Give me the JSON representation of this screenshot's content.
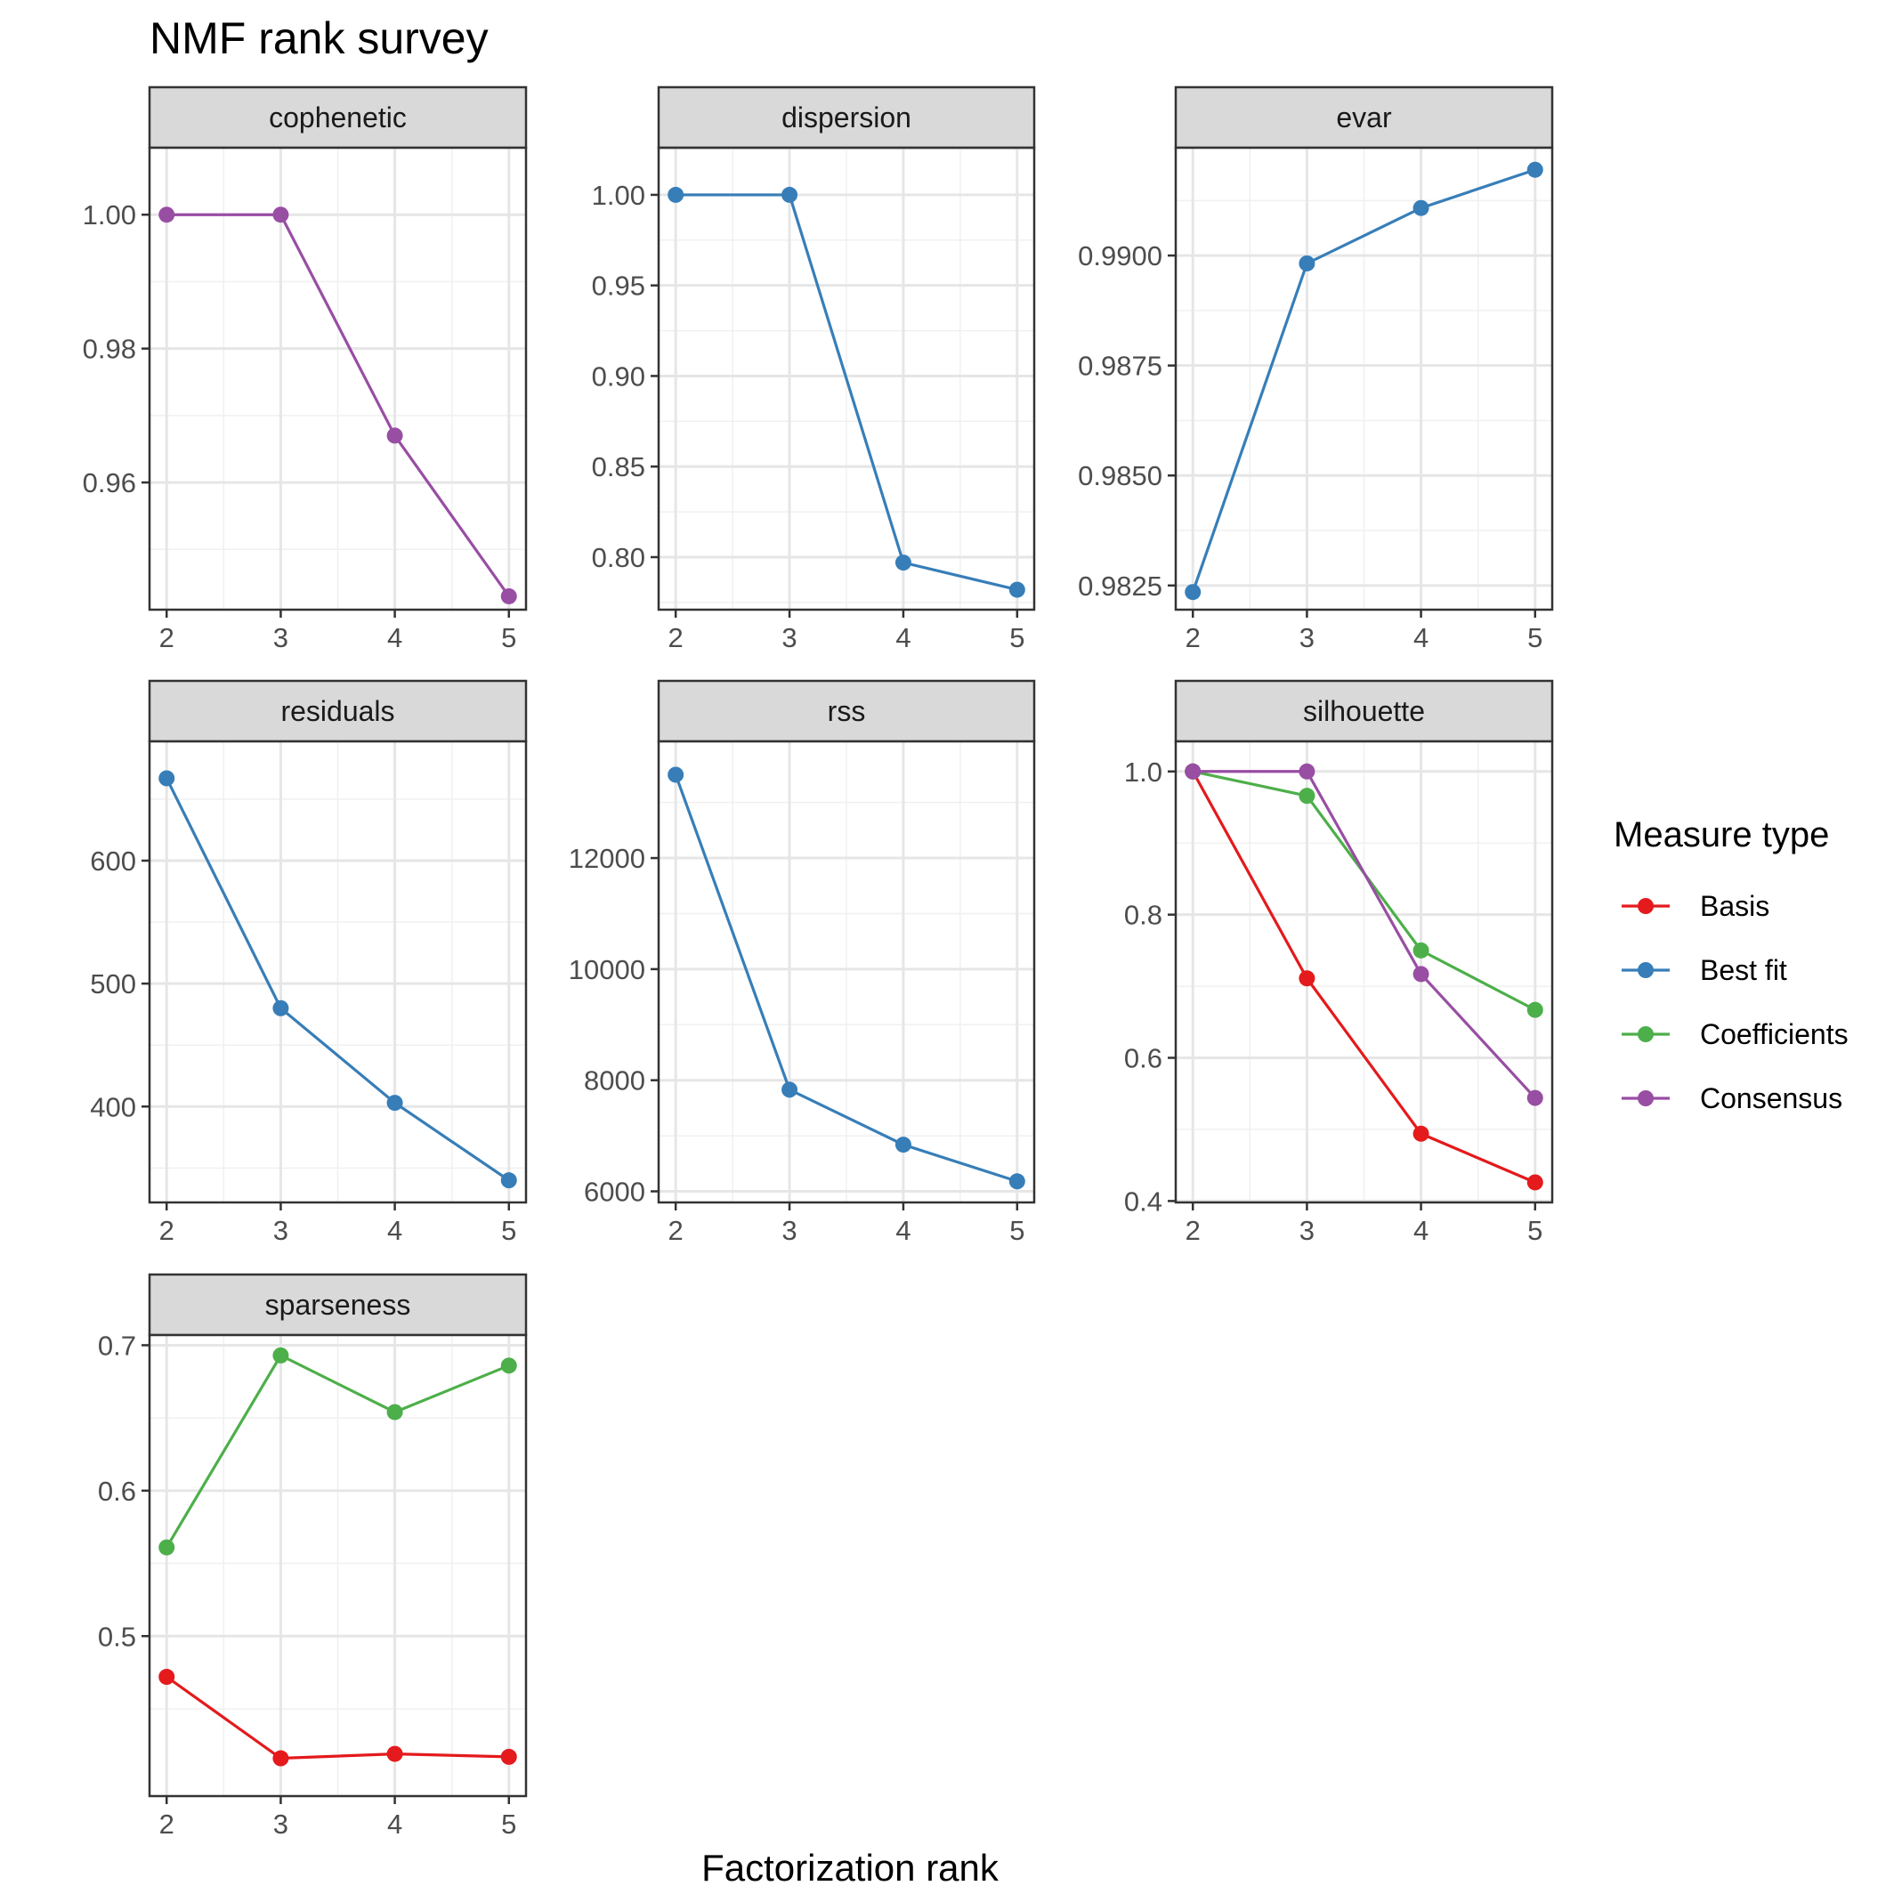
{
  "chart_data": {
    "type": "line",
    "title": "NMF rank survey",
    "xlabel": "Factorization rank",
    "x": [
      2,
      3,
      4,
      5
    ],
    "legend": {
      "title": "Measure type",
      "placement": "right",
      "entries": [
        {
          "name": "Basis",
          "color": "#e41a1c"
        },
        {
          "name": "Best fit",
          "color": "#377eb8"
        },
        {
          "name": "Coefficients",
          "color": "#4daf4a"
        },
        {
          "name": "Consensus",
          "color": "#984ea3"
        }
      ]
    },
    "panels": [
      {
        "name": "cophenetic",
        "ylim": [
          0.941,
          1.01
        ],
        "y_ticks": [
          1.0,
          0.98,
          0.96
        ],
        "y_tick_labels": [
          "1.00",
          "0.98",
          "0.96"
        ],
        "series": [
          {
            "name": "Consensus",
            "values": [
              1.0,
              1.0,
              0.967,
              0.943
            ]
          }
        ]
      },
      {
        "name": "dispersion",
        "ylim": [
          0.771,
          1.026
        ],
        "y_ticks": [
          1.0,
          0.95,
          0.9,
          0.85,
          0.8
        ],
        "y_tick_labels": [
          "1.00",
          "0.95",
          "0.90",
          "0.85",
          "0.80"
        ],
        "series": [
          {
            "name": "Best fit",
            "values": [
              1.0,
              1.0,
              0.797,
              0.782
            ]
          }
        ]
      },
      {
        "name": "evar",
        "ylim": [
          0.98195,
          0.99245
        ],
        "y_ticks": [
          0.99,
          0.9875,
          0.985,
          0.9825
        ],
        "y_tick_labels": [
          "0.9900",
          "0.9875",
          "0.9850",
          "0.9825"
        ],
        "series": [
          {
            "name": "Best fit",
            "values": [
              0.98235,
              0.98982,
              0.99108,
              0.99195
            ]
          }
        ]
      },
      {
        "name": "residuals",
        "ylim": [
          322,
          697
        ],
        "y_ticks": [
          600,
          500,
          400
        ],
        "y_tick_labels": [
          "600",
          "500",
          "400"
        ],
        "series": [
          {
            "name": "Best fit",
            "values": [
              667,
              480,
              403,
              340
            ]
          }
        ]
      },
      {
        "name": "rss",
        "ylim": [
          5800,
          14100
        ],
        "y_ticks": [
          12000,
          10000,
          8000,
          6000
        ],
        "y_tick_labels": [
          "12000",
          "10000",
          "8000",
          "6000"
        ],
        "series": [
          {
            "name": "Best fit",
            "values": [
              13500,
              7830,
              6840,
              6180
            ]
          }
        ]
      },
      {
        "name": "silhouette",
        "ylim": [
          0.398,
          1.042
        ],
        "y_ticks": [
          1.0,
          0.8,
          0.6,
          0.4
        ],
        "y_tick_labels": [
          "1.0",
          "0.8",
          "0.6",
          "0.4"
        ],
        "series": [
          {
            "name": "Basis",
            "values": [
              1.0,
              0.711,
              0.494,
              0.426
            ]
          },
          {
            "name": "Coefficients",
            "values": [
              1.0,
              0.966,
              0.75,
              0.667
            ]
          },
          {
            "name": "Consensus",
            "values": [
              1.0,
              1.0,
              0.717,
              0.544
            ]
          }
        ]
      },
      {
        "name": "sparseness",
        "ylim": [
          0.39,
          0.707
        ],
        "y_ticks": [
          0.7,
          0.6,
          0.5
        ],
        "y_tick_labels": [
          "0.7",
          "0.6",
          "0.5"
        ],
        "series": [
          {
            "name": "Basis",
            "values": [
              0.472,
              0.416,
              0.419,
              0.417
            ]
          },
          {
            "name": "Coefficients",
            "values": [
              0.561,
              0.693,
              0.654,
              0.686
            ]
          }
        ]
      }
    ]
  }
}
